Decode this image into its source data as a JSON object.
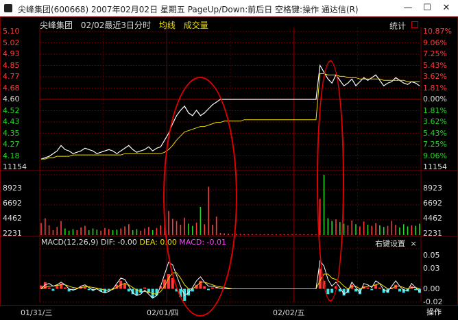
{
  "window": {
    "title": "尖峰集团(600668) 2007年02月02日 星期五 PageUp/Down:前后日 空格键:操作 通达信(R)",
    "minimize": "—",
    "maximize": "☐",
    "close": "✕"
  },
  "header": {
    "stock_name": "尖峰集团",
    "period": "02/02最近3日分时",
    "avg_line_label": "均线",
    "volume_label": "成交量",
    "stats_button": "统计"
  },
  "axes": {
    "price_left": [
      "5.10",
      "5.02",
      "4.93",
      "4.85",
      "4.77",
      "4.68",
      "4.60",
      "4.52",
      "4.43",
      "4.35",
      "4.27",
      "4.18",
      "11154"
    ],
    "pct_right": [
      "10.87%",
      "9.06%",
      "7.25%",
      "5.43%",
      "3.62%",
      "1.81%",
      "0.00%",
      "1.81%",
      "3.62%",
      "5.43%",
      "7.25%",
      "9.06%",
      "11154"
    ],
    "volume_left": [
      "8923",
      "6692",
      "4462",
      "2231"
    ],
    "volume_right": [
      "8923",
      "6692",
      "4462",
      "2231"
    ],
    "macd_right": [
      "0.05",
      "0.03",
      "0.00",
      "-0.02"
    ]
  },
  "macd": {
    "name": "MACD(12,26,9)",
    "dif": "DIF: -0.00",
    "dea": "DEA: 0.00",
    "macd": "MACD: -0.01",
    "right_menu": "右键设置",
    "close": "×"
  },
  "dates": [
    "01/31/三",
    "02/01/四",
    "02/02/五"
  ],
  "operate_button": "操作",
  "colors": {
    "up": "#ff3b3b",
    "down": "#29d629",
    "neutral": "#ffffff",
    "avg_line": "#f0e000",
    "grid": "#8b0000",
    "macd_neg": "#40e0e0",
    "macd_label": "#ff40ff"
  },
  "chart_data": {
    "type": "line",
    "title": "02/02最近3日分时",
    "days": [
      "01/31/三",
      "02/01/四",
      "02/02/五"
    ],
    "prev_close": 4.6,
    "ylim": [
      4.1,
      5.1
    ],
    "series": [
      {
        "name": "price",
        "values": [
          4.16,
          4.17,
          4.18,
          4.2,
          4.22,
          4.26,
          4.23,
          4.22,
          4.2,
          4.21,
          4.22,
          4.24,
          4.23,
          4.22,
          4.2,
          4.21,
          4.22,
          4.23,
          4.22,
          4.2,
          4.22,
          4.24,
          4.26,
          4.23,
          4.21,
          4.22,
          4.23,
          4.25,
          4.22,
          4.24,
          4.25,
          4.3,
          4.35,
          4.42,
          4.48,
          4.52,
          4.55,
          4.5,
          4.48,
          4.52,
          4.48,
          4.5,
          4.53,
          4.56,
          4.58,
          4.6,
          4.6,
          4.6,
          4.6,
          4.6,
          4.6,
          4.6,
          4.6,
          4.6,
          4.6,
          4.6,
          4.6,
          4.6,
          4.6,
          4.6,
          4.6,
          4.6,
          4.6,
          4.6,
          4.6,
          4.6,
          4.6,
          4.6,
          4.6,
          4.6,
          4.85,
          4.8,
          4.75,
          4.72,
          4.78,
          4.74,
          4.7,
          4.72,
          4.75,
          4.7,
          4.73,
          4.76,
          4.74,
          4.76,
          4.78,
          4.74,
          4.7,
          4.72,
          4.73,
          4.76,
          4.74,
          4.72,
          4.71,
          4.73,
          4.72,
          4.7
        ]
      },
      {
        "name": "均线",
        "values": [
          4.16,
          4.16,
          4.17,
          4.17,
          4.18,
          4.18,
          4.18,
          4.18,
          4.19,
          4.19,
          4.19,
          4.19,
          4.19,
          4.19,
          4.19,
          4.19,
          4.19,
          4.19,
          4.19,
          4.19,
          4.19,
          4.2,
          4.2,
          4.2,
          4.2,
          4.2,
          4.2,
          4.2,
          4.2,
          4.2,
          4.2,
          4.21,
          4.23,
          4.26,
          4.3,
          4.33,
          4.36,
          4.37,
          4.38,
          4.39,
          4.4,
          4.4,
          4.41,
          4.42,
          4.43,
          4.43,
          4.44,
          4.44,
          4.44,
          4.44,
          4.44,
          4.45,
          4.45,
          4.45,
          4.45,
          4.45,
          4.45,
          4.45,
          4.45,
          4.45,
          4.45,
          4.45,
          4.45,
          4.45,
          4.45,
          4.45,
          4.45,
          4.45,
          4.45,
          4.45,
          4.79,
          4.79,
          4.78,
          4.78,
          4.78,
          4.77,
          4.77,
          4.76,
          4.76,
          4.76,
          4.75,
          4.75,
          4.75,
          4.75,
          4.75,
          4.75,
          4.74,
          4.74,
          4.74,
          4.74,
          4.74,
          4.74,
          4.73,
          4.73,
          4.73,
          4.73
        ]
      }
    ],
    "volume": [
      2231,
      3100,
      1800,
      900,
      1500,
      2600,
      1200,
      800,
      1100,
      900,
      1400,
      1700,
      900,
      1200,
      1000,
      800,
      1300,
      1100,
      900,
      1000,
      1200,
      1600,
      2000,
      900,
      1100,
      800,
      1200,
      1500,
      900,
      1300,
      1800,
      2400,
      4462,
      3000,
      2600,
      1900,
      3200,
      2100,
      1700,
      2300,
      5200,
      2000,
      8923,
      1900,
      3400,
      400,
      300,
      250,
      200,
      200,
      200,
      180,
      180,
      160,
      150,
      150,
      150,
      150,
      150,
      150,
      150,
      150,
      150,
      150,
      150,
      150,
      150,
      150,
      150,
      150,
      6692,
      11154,
      3100,
      2600,
      2900,
      2400,
      2100,
      1800,
      2700,
      2000,
      1600,
      2500,
      1900,
      1700,
      2200,
      1800,
      1500,
      1700,
      2600,
      1900,
      1400,
      2000,
      1600,
      1800,
      1700,
      2100
    ],
    "volume_ylim": [
      0,
      11154
    ],
    "macd_hist": [
      0.005,
      0.01,
      0.002,
      -0.003,
      0.004,
      0.008,
      0.002,
      -0.004,
      -0.002,
      0.001,
      0.003,
      0.004,
      -0.002,
      -0.003,
      0.001,
      -0.004,
      -0.006,
      -0.002,
      0.001,
      0.006,
      0.012,
      0.008,
      -0.004,
      -0.008,
      -0.01,
      -0.006,
      0.002,
      -0.006,
      -0.014,
      -0.01,
      0.004,
      0.014,
      0.022,
      0.016,
      -0.004,
      -0.012,
      -0.018,
      -0.01,
      -0.004,
      0.006,
      0.012,
      0.004,
      -0.002,
      0.002,
      0.001,
      0.0,
      0.0,
      0.0,
      0.0,
      0.0,
      0.0,
      0.0,
      0.0,
      0.0,
      0.0,
      0.0,
      0.0,
      0.0,
      0.0,
      0.0,
      0.0,
      0.0,
      0.0,
      0.0,
      0.0,
      0.0,
      0.0,
      0.0,
      0.0,
      0.0,
      0.03,
      0.012,
      -0.008,
      -0.006,
      0.004,
      -0.004,
      -0.01,
      -0.006,
      0.006,
      -0.004,
      -0.008,
      0.004,
      0.002,
      -0.002,
      0.006,
      0.002,
      -0.006,
      -0.006,
      0.002,
      0.006,
      -0.004,
      -0.006,
      -0.004,
      0.004,
      -0.002,
      -0.006
    ],
    "macd_dif": [
      0.0,
      0.006,
      0.008,
      0.004,
      0.006,
      0.01,
      0.006,
      0.0,
      -0.002,
      0.0,
      0.004,
      0.006,
      0.002,
      -0.002,
      0.0,
      -0.004,
      -0.006,
      -0.004,
      0.0,
      0.008,
      0.016,
      0.014,
      0.004,
      -0.006,
      -0.01,
      -0.008,
      -0.002,
      -0.008,
      -0.014,
      -0.01,
      0.004,
      0.022,
      0.04,
      0.036,
      0.02,
      0.004,
      -0.01,
      -0.006,
      0.002,
      0.012,
      0.018,
      0.01,
      0.004,
      0.004,
      0.002,
      0.001,
      0.0,
      0.0,
      0.0,
      0.0,
      0.0,
      0.0,
      0.0,
      0.0,
      0.0,
      0.0,
      0.0,
      0.0,
      0.0,
      0.0,
      0.0,
      0.0,
      0.0,
      0.0,
      0.0,
      0.0,
      0.0,
      0.0,
      0.0,
      0.0,
      0.042,
      0.034,
      0.014,
      0.004,
      0.01,
      0.002,
      -0.008,
      -0.004,
      0.01,
      0.002,
      -0.006,
      0.008,
      0.006,
      0.002,
      0.012,
      0.008,
      -0.002,
      -0.004,
      0.004,
      0.012,
      0.004,
      -0.002,
      -0.002,
      0.008,
      0.002,
      -0.004
    ],
    "macd_dea": [
      0.0,
      0.002,
      0.004,
      0.004,
      0.005,
      0.006,
      0.006,
      0.004,
      0.002,
      0.001,
      0.002,
      0.003,
      0.003,
      0.002,
      0.001,
      0.0,
      -0.002,
      -0.002,
      -0.001,
      0.002,
      0.006,
      0.008,
      0.006,
      0.002,
      -0.002,
      -0.004,
      -0.004,
      -0.005,
      -0.007,
      -0.008,
      -0.004,
      0.004,
      0.016,
      0.024,
      0.024,
      0.016,
      0.006,
      0.0,
      0.0,
      0.004,
      0.01,
      0.01,
      0.008,
      0.006,
      0.004,
      0.003,
      0.002,
      0.001,
      0.0,
      0.0,
      0.0,
      0.0,
      0.0,
      0.0,
      0.0,
      0.0,
      0.0,
      0.0,
      0.0,
      0.0,
      0.0,
      0.0,
      0.0,
      0.0,
      0.0,
      0.0,
      0.0,
      0.0,
      0.0,
      0.0,
      0.012,
      0.022,
      0.022,
      0.016,
      0.014,
      0.01,
      0.004,
      0.0,
      0.004,
      0.004,
      0.0,
      0.002,
      0.004,
      0.004,
      0.006,
      0.008,
      0.004,
      0.0,
      0.0,
      0.004,
      0.004,
      0.002,
      0.0,
      0.002,
      0.002,
      0.0
    ],
    "macd_ylim": [
      -0.02,
      0.06
    ]
  }
}
